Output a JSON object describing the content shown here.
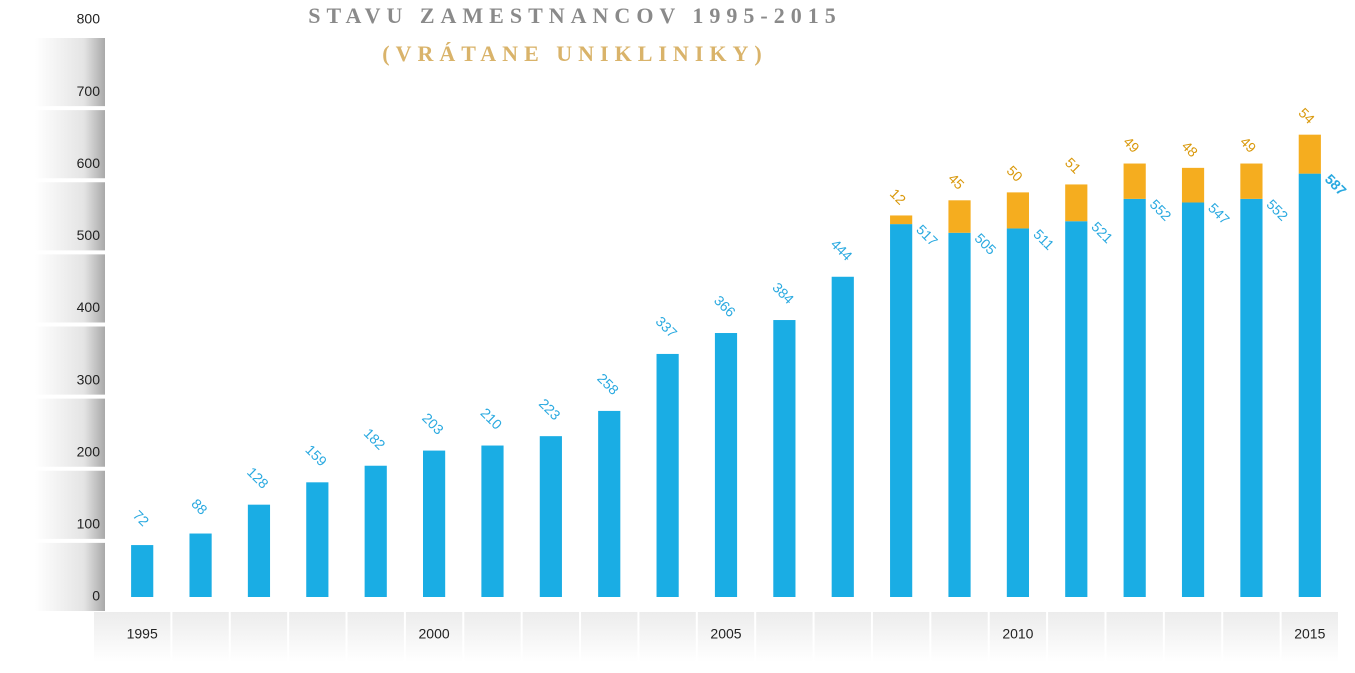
{
  "chart_data": {
    "type": "stacked_bar",
    "title": "STAVU ZAMESTNANCOV 1995-2015",
    "subtitle": "(VRÁTANE UNIKLINIKY)",
    "categories": [
      "1995",
      null,
      null,
      null,
      null,
      "2000",
      null,
      null,
      null,
      null,
      "2005",
      null,
      null,
      null,
      null,
      "2010",
      null,
      null,
      null,
      null,
      "2015"
    ],
    "series": [
      {
        "color": "#1aade4",
        "values": [
          72,
          88,
          128,
          159,
          182,
          203,
          210,
          223,
          258,
          337,
          366,
          384,
          444,
          517,
          505,
          511,
          521,
          552,
          547,
          552,
          587
        ]
      },
      {
        "color": "#f5ad1f",
        "values": [
          null,
          null,
          null,
          null,
          null,
          null,
          null,
          null,
          null,
          null,
          null,
          null,
          null,
          12,
          45,
          50,
          51,
          49,
          48,
          49,
          54
        ]
      }
    ],
    "ylim": [
      0,
      800
    ],
    "yticks": [
      0,
      100,
      200,
      300,
      400,
      500,
      600,
      700,
      800
    ]
  }
}
